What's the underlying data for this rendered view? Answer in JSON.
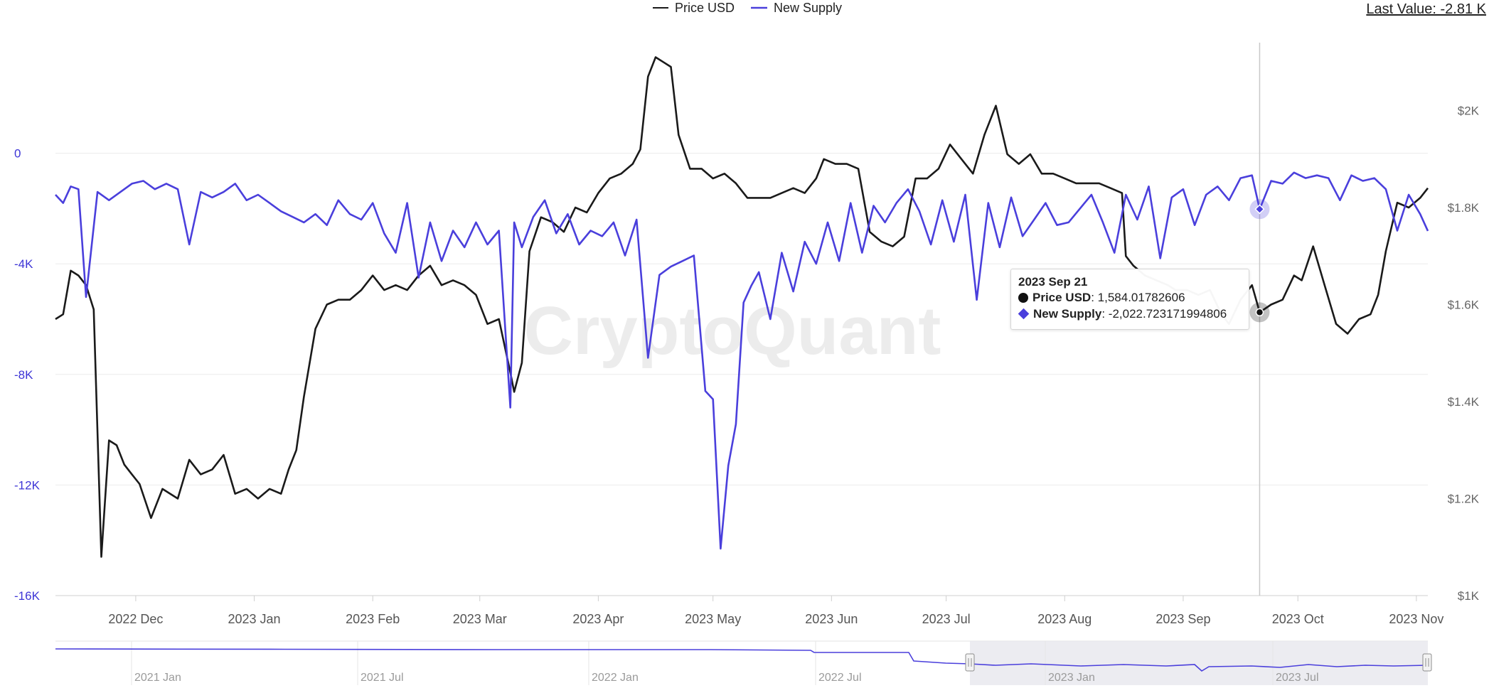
{
  "header": {
    "last_value_label": "Last Value: -2.81 K"
  },
  "legend": [
    {
      "name": "Price USD",
      "color": "#1a1a1a"
    },
    {
      "name": "New Supply",
      "color": "#4a3fdc"
    }
  ],
  "watermark": "CryptoQuant",
  "tooltip": {
    "date": "2023 Sep 21",
    "price_label": "Price USD",
    "price_value": ": 1,584.01782606",
    "supply_label": "New Supply",
    "supply_value": ": -2,022.723171994806"
  },
  "navigator": {
    "labels": [
      "2021 Jan",
      "2021 Jul",
      "2022 Jan",
      "2022 Jul",
      "2023 Jan",
      "2023 Jul"
    ]
  },
  "chart_data": {
    "type": "line",
    "x_ticks": [
      "2022 Dec",
      "2023 Jan",
      "2023 Feb",
      "2023 Mar",
      "2023 Apr",
      "2023 May",
      "2023 Jun",
      "2023 Jul",
      "2023 Aug",
      "2023 Sep",
      "2023 Oct",
      "2023 Nov"
    ],
    "x_range": [
      "2022-11-10",
      "2023-11-04"
    ],
    "y_left": {
      "ticks": [
        "0",
        "-4K",
        "-8K",
        "-12K",
        "-16K"
      ],
      "range": [
        -16000,
        4000
      ],
      "color": "#3d35d6"
    },
    "y_right": {
      "ticks": [
        "$2K",
        "$1.8K",
        "$1.6K",
        "$1.4K",
        "$1.2K",
        "$1K"
      ],
      "range": [
        1000,
        2140
      ]
    },
    "grid": true,
    "legend_position": "top-center",
    "series": [
      {
        "name": "Price USD",
        "axis": "right",
        "color": "#1a1a1a",
        "x": [
          "2022-11-10",
          "2022-11-12",
          "2022-11-14",
          "2022-11-16",
          "2022-11-18",
          "2022-11-20",
          "2022-11-22",
          "2022-11-24",
          "2022-11-26",
          "2022-11-28",
          "2022-11-30",
          "2022-12-02",
          "2022-12-05",
          "2022-12-08",
          "2022-12-12",
          "2022-12-15",
          "2022-12-18",
          "2022-12-21",
          "2022-12-24",
          "2022-12-27",
          "2022-12-30",
          "2023-01-02",
          "2023-01-05",
          "2023-01-08",
          "2023-01-10",
          "2023-01-12",
          "2023-01-14",
          "2023-01-17",
          "2023-01-20",
          "2023-01-23",
          "2023-01-26",
          "2023-01-29",
          "2023-02-01",
          "2023-02-04",
          "2023-02-07",
          "2023-02-10",
          "2023-02-13",
          "2023-02-16",
          "2023-02-19",
          "2023-02-22",
          "2023-02-25",
          "2023-02-28",
          "2023-03-03",
          "2023-03-06",
          "2023-03-09",
          "2023-03-10",
          "2023-03-12",
          "2023-03-14",
          "2023-03-17",
          "2023-03-20",
          "2023-03-23",
          "2023-03-26",
          "2023-03-29",
          "2023-04-01",
          "2023-04-04",
          "2023-04-07",
          "2023-04-10",
          "2023-04-12",
          "2023-04-14",
          "2023-04-16",
          "2023-04-18",
          "2023-04-20",
          "2023-04-22",
          "2023-04-25",
          "2023-04-28",
          "2023-05-01",
          "2023-05-04",
          "2023-05-07",
          "2023-05-10",
          "2023-05-13",
          "2023-05-16",
          "2023-05-19",
          "2023-05-22",
          "2023-05-25",
          "2023-05-28",
          "2023-05-30",
          "2023-06-02",
          "2023-06-05",
          "2023-06-08",
          "2023-06-11",
          "2023-06-14",
          "2023-06-17",
          "2023-06-20",
          "2023-06-23",
          "2023-06-26",
          "2023-06-29",
          "2023-07-02",
          "2023-07-05",
          "2023-07-08",
          "2023-07-11",
          "2023-07-14",
          "2023-07-17",
          "2023-07-20",
          "2023-07-23",
          "2023-07-26",
          "2023-07-29",
          "2023-08-01",
          "2023-08-04",
          "2023-08-07",
          "2023-08-10",
          "2023-08-13",
          "2023-08-16",
          "2023-08-17",
          "2023-08-19",
          "2023-08-22",
          "2023-08-25",
          "2023-08-28",
          "2023-08-30",
          "2023-09-02",
          "2023-09-05",
          "2023-09-08",
          "2023-09-11",
          "2023-09-13",
          "2023-09-16",
          "2023-09-19",
          "2023-09-21",
          "2023-09-24",
          "2023-09-27",
          "2023-09-30",
          "2023-10-02",
          "2023-10-05",
          "2023-10-08",
          "2023-10-11",
          "2023-10-14",
          "2023-10-17",
          "2023-10-20",
          "2023-10-22",
          "2023-10-24",
          "2023-10-27",
          "2023-10-30",
          "2023-11-02",
          "2023-11-04"
        ],
        "values": [
          1570,
          1580,
          1670,
          1660,
          1640,
          1590,
          1080,
          1320,
          1310,
          1270,
          1250,
          1230,
          1160,
          1220,
          1200,
          1280,
          1250,
          1260,
          1290,
          1210,
          1220,
          1200,
          1220,
          1210,
          1260,
          1300,
          1410,
          1550,
          1600,
          1610,
          1610,
          1630,
          1660,
          1630,
          1640,
          1630,
          1660,
          1680,
          1640,
          1650,
          1640,
          1620,
          1560,
          1570,
          1460,
          1420,
          1480,
          1710,
          1780,
          1770,
          1750,
          1800,
          1790,
          1830,
          1860,
          1870,
          1890,
          1920,
          2070,
          2110,
          2100,
          2090,
          1950,
          1880,
          1880,
          1860,
          1870,
          1850,
          1820,
          1820,
          1820,
          1830,
          1840,
          1830,
          1860,
          1900,
          1890,
          1890,
          1880,
          1750,
          1730,
          1720,
          1740,
          1860,
          1860,
          1880,
          1930,
          1900,
          1870,
          1950,
          2010,
          1910,
          1890,
          1910,
          1870,
          1870,
          1860,
          1850,
          1850,
          1850,
          1840,
          1830,
          1700,
          1680,
          1660,
          1650,
          1640,
          1630,
          1630,
          1620,
          1630,
          1580,
          1560,
          1610,
          1640,
          1584.02,
          1600,
          1610,
          1660,
          1650,
          1720,
          1640,
          1560,
          1540,
          1570,
          1580,
          1620,
          1710,
          1810,
          1800,
          1820,
          1840
        ]
      },
      {
        "name": "New Supply",
        "axis": "left",
        "color": "#4a3fdc",
        "x": [
          "2022-11-10",
          "2022-11-12",
          "2022-11-14",
          "2022-11-16",
          "2022-11-18",
          "2022-11-21",
          "2022-11-24",
          "2022-11-27",
          "2022-11-30",
          "2022-12-03",
          "2022-12-06",
          "2022-12-09",
          "2022-12-12",
          "2022-12-15",
          "2022-12-18",
          "2022-12-21",
          "2022-12-24",
          "2022-12-27",
          "2022-12-30",
          "2023-01-02",
          "2023-01-05",
          "2023-01-08",
          "2023-01-11",
          "2023-01-14",
          "2023-01-17",
          "2023-01-20",
          "2023-01-23",
          "2023-01-26",
          "2023-01-29",
          "2023-02-01",
          "2023-02-04",
          "2023-02-07",
          "2023-02-10",
          "2023-02-13",
          "2023-02-16",
          "2023-02-19",
          "2023-02-22",
          "2023-02-25",
          "2023-02-28",
          "2023-03-03",
          "2023-03-06",
          "2023-03-09",
          "2023-03-10",
          "2023-03-12",
          "2023-03-15",
          "2023-03-18",
          "2023-03-21",
          "2023-03-24",
          "2023-03-27",
          "2023-03-30",
          "2023-04-02",
          "2023-04-05",
          "2023-04-08",
          "2023-04-11",
          "2023-04-14",
          "2023-04-17",
          "2023-04-20",
          "2023-04-23",
          "2023-04-26",
          "2023-04-29",
          "2023-05-01",
          "2023-05-03",
          "2023-05-05",
          "2023-05-07",
          "2023-05-09",
          "2023-05-11",
          "2023-05-13",
          "2023-05-16",
          "2023-05-19",
          "2023-05-22",
          "2023-05-25",
          "2023-05-28",
          "2023-05-31",
          "2023-06-03",
          "2023-06-06",
          "2023-06-09",
          "2023-06-12",
          "2023-06-15",
          "2023-06-18",
          "2023-06-21",
          "2023-06-24",
          "2023-06-27",
          "2023-06-30",
          "2023-07-03",
          "2023-07-06",
          "2023-07-09",
          "2023-07-12",
          "2023-07-15",
          "2023-07-18",
          "2023-07-21",
          "2023-07-24",
          "2023-07-27",
          "2023-07-30",
          "2023-08-02",
          "2023-08-05",
          "2023-08-08",
          "2023-08-11",
          "2023-08-14",
          "2023-08-17",
          "2023-08-20",
          "2023-08-23",
          "2023-08-26",
          "2023-08-29",
          "2023-09-01",
          "2023-09-04",
          "2023-09-07",
          "2023-09-10",
          "2023-09-13",
          "2023-09-16",
          "2023-09-19",
          "2023-09-21",
          "2023-09-24",
          "2023-09-27",
          "2023-09-30",
          "2023-10-03",
          "2023-10-06",
          "2023-10-09",
          "2023-10-12",
          "2023-10-15",
          "2023-10-18",
          "2023-10-21",
          "2023-10-24",
          "2023-10-27",
          "2023-10-30",
          "2023-11-02",
          "2023-11-04"
        ],
        "values": [
          -1500,
          -1800,
          -1200,
          -1300,
          -5200,
          -1400,
          -1700,
          -1400,
          -1100,
          -1000,
          -1300,
          -1100,
          -1300,
          -3300,
          -1400,
          -1600,
          -1400,
          -1100,
          -1700,
          -1500,
          -1800,
          -2100,
          -2300,
          -2500,
          -2200,
          -2600,
          -1700,
          -2200,
          -2400,
          -1800,
          -2900,
          -3600,
          -1800,
          -4500,
          -2500,
          -3900,
          -2800,
          -3400,
          -2500,
          -3300,
          -2800,
          -9200,
          -2500,
          -3400,
          -2300,
          -1700,
          -2900,
          -2200,
          -3300,
          -2800,
          -3000,
          -2500,
          -3700,
          -2400,
          -7400,
          -4400,
          -4100,
          -3900,
          -3700,
          -8600,
          -8900,
          -14300,
          -11300,
          -9800,
          -5400,
          -4800,
          -4300,
          -6000,
          -3600,
          -5000,
          -3200,
          -4000,
          -2500,
          -3900,
          -1800,
          -3600,
          -1900,
          -2500,
          -1800,
          -1300,
          -2100,
          -3300,
          -1700,
          -3200,
          -1500,
          -5300,
          -1800,
          -3400,
          -1600,
          -3000,
          -2400,
          -1800,
          -2600,
          -2500,
          -2000,
          -1500,
          -2500,
          -3600,
          -1500,
          -2400,
          -1200,
          -3800,
          -1600,
          -1300,
          -2600,
          -1500,
          -1200,
          -1700,
          -900,
          -800,
          -2022.72,
          -1000,
          -1100,
          -700,
          -900,
          -800,
          -900,
          -1700,
          -800,
          -1000,
          -900,
          -1300,
          -2800,
          -1500,
          -2200,
          -2810
        ]
      }
    ]
  }
}
